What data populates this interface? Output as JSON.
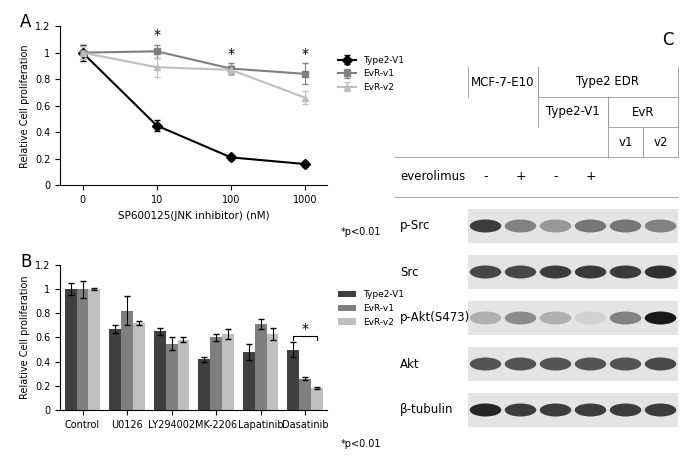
{
  "chart_data": [
    {
      "type": "line",
      "title": "A",
      "x_label": "SP600125(JNK inhibitor) (nM)",
      "y_label": "Relative Cell proliferation",
      "categories": [
        "0",
        "10",
        "100",
        "1000"
      ],
      "series": [
        {
          "name": "Type2-V1",
          "color": "#000000",
          "marker": "diamond",
          "line_style": "solid",
          "values": [
            1,
            0.45,
            0.21,
            0.16
          ],
          "errors": [
            0.06,
            0.04,
            0.02,
            0.02
          ]
        },
        {
          "name": "EvR-v1",
          "color": "#7f7f7f",
          "marker": "square",
          "line_style": "solid",
          "values": [
            1,
            1.01,
            0.88,
            0.84
          ],
          "errors": [
            0.05,
            0.05,
            0.04,
            0.08
          ]
        },
        {
          "name": "EvR-v2",
          "color": "#bfbfbf",
          "marker": "triangle",
          "line_style": "solid",
          "values": [
            1,
            0.89,
            0.87,
            0.66
          ],
          "errors": [
            0.05,
            0.07,
            0.04,
            0.05
          ]
        }
      ],
      "annotations": [
        {
          "category": "10",
          "text": "*"
        },
        {
          "category": "100",
          "text": "*"
        },
        {
          "category": "1000",
          "text": "*"
        }
      ],
      "note": "*p<0.01",
      "ylim": [
        0,
        1.2
      ],
      "yticks": [
        0,
        0.2,
        0.4,
        0.6,
        0.8,
        1,
        1.2
      ],
      "legend": "right",
      "grid": false
    },
    {
      "type": "bar",
      "title": "B",
      "y_label": "Relative Cell proliferation",
      "categories": [
        "Control",
        "U0126",
        "LY294002",
        "MK-2206",
        "Lapatinib",
        "Dasatinib"
      ],
      "series": [
        {
          "name": "Type2-V1",
          "color": "#404040",
          "values": [
            1.0,
            0.67,
            0.65,
            0.42,
            0.48,
            0.5
          ],
          "errors": [
            0.05,
            0.03,
            0.03,
            0.02,
            0.07,
            0.06
          ]
        },
        {
          "name": "EvR-v1",
          "color": "#7f7f7f",
          "values": [
            1.0,
            0.82,
            0.55,
            0.6,
            0.71,
            0.26
          ],
          "errors": [
            0.07,
            0.12,
            0.05,
            0.03,
            0.04,
            0.01
          ]
        },
        {
          "name": "EvR-v2",
          "color": "#bfbfbf",
          "values": [
            1.0,
            0.72,
            0.58,
            0.63,
            0.63,
            0.18
          ],
          "errors": [
            0.01,
            0.02,
            0.02,
            0.04,
            0.05,
            0.01
          ]
        }
      ],
      "annotations": [
        {
          "category": "Dasatinib",
          "text": "*",
          "between": [
            "Type2-V1",
            "EvR-v2"
          ]
        }
      ],
      "note": "*p<0.01",
      "ylim": [
        0,
        1.2
      ],
      "yticks": [
        0,
        0.2,
        0.4,
        0.6,
        0.8,
        1,
        1.2
      ],
      "legend": "right",
      "grid": false
    }
  ],
  "blot": {
    "title": "C",
    "headers": [
      [
        {
          "text": "MCF-7-E10",
          "span": 2
        },
        {
          "text": "Type2 EDR",
          "span": 4
        }
      ],
      [
        {
          "text": null,
          "span": 2
        },
        {
          "text": "Type2-V1",
          "span": 2
        },
        {
          "text": "EvR",
          "span": 2
        }
      ],
      [
        {
          "text": null,
          "span": 4
        },
        {
          "text": "v1",
          "span": 1
        },
        {
          "text": "v2",
          "span": 1
        }
      ]
    ],
    "treatment": {
      "label": "everolimus",
      "lanes": [
        "-",
        "+",
        "-",
        "+",
        null,
        null
      ]
    },
    "rows": [
      {
        "label": "p-Src",
        "intensity": [
          0.85,
          0.55,
          0.45,
          0.6,
          0.6,
          0.55
        ]
      },
      {
        "label": "Src",
        "intensity": [
          0.8,
          0.8,
          0.85,
          0.85,
          0.85,
          0.9
        ]
      },
      {
        "label": "p-Akt(S473)",
        "intensity": [
          0.35,
          0.5,
          0.35,
          0.2,
          0.55,
          1.0
        ]
      },
      {
        "label": "Akt",
        "intensity": [
          0.75,
          0.75,
          0.75,
          0.75,
          0.75,
          0.8
        ]
      },
      {
        "label": "β-tubulin",
        "intensity": [
          0.95,
          0.85,
          0.85,
          0.85,
          0.85,
          0.85
        ]
      }
    ]
  }
}
